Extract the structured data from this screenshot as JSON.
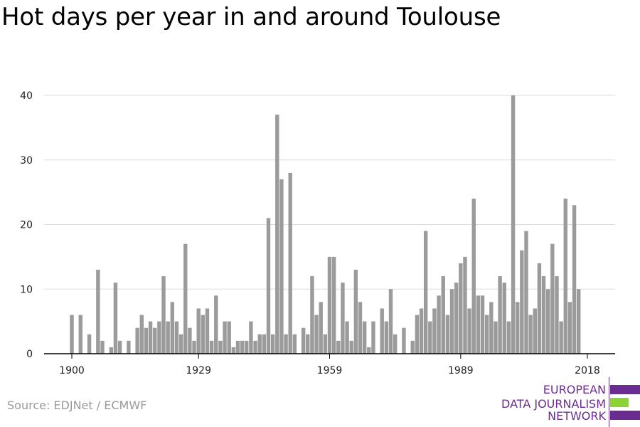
{
  "title": "Hot days per year in and around Toulouse",
  "source": "Source: EDJNet / ECMWF",
  "logo": {
    "line1": "EUROPEAN",
    "line2": "DATA JOURNALISM",
    "line3": "NETWORK",
    "colors": {
      "text": "#6b2c91",
      "bar_purple": "#6b2c91",
      "bar_green": "#8cd335"
    }
  },
  "colors": {
    "bar": "#9b9b9b",
    "grid": "#dddddd",
    "axis": "#000000"
  },
  "chart_data": {
    "type": "bar",
    "title": "Hot days per year in and around Toulouse",
    "xlabel": "",
    "ylabel": "",
    "ylim": [
      0,
      40
    ],
    "yticks": [
      0,
      10,
      20,
      30,
      40
    ],
    "xticks": [
      1900,
      1929,
      1959,
      1989,
      2018
    ],
    "grid": true,
    "x": [
      1900,
      1901,
      1902,
      1903,
      1904,
      1905,
      1906,
      1907,
      1908,
      1909,
      1910,
      1911,
      1912,
      1913,
      1914,
      1915,
      1916,
      1917,
      1918,
      1919,
      1920,
      1921,
      1922,
      1923,
      1924,
      1925,
      1926,
      1927,
      1928,
      1929,
      1930,
      1931,
      1932,
      1933,
      1934,
      1935,
      1936,
      1937,
      1938,
      1939,
      1940,
      1941,
      1942,
      1943,
      1944,
      1945,
      1946,
      1947,
      1948,
      1949,
      1950,
      1951,
      1952,
      1953,
      1954,
      1955,
      1956,
      1957,
      1958,
      1959,
      1960,
      1961,
      1962,
      1963,
      1964,
      1965,
      1966,
      1967,
      1968,
      1969,
      1970,
      1971,
      1972,
      1973,
      1974,
      1975,
      1976,
      1977,
      1978,
      1979,
      1980,
      1981,
      1982,
      1983,
      1984,
      1985,
      1986,
      1987,
      1988,
      1989,
      1990,
      1991,
      1992,
      1993,
      1994,
      1995,
      1996,
      1997,
      1998,
      1999,
      2000,
      2001,
      2002,
      2003,
      2004,
      2005,
      2006,
      2007,
      2008,
      2009,
      2010,
      2011,
      2012,
      2013,
      2014,
      2015,
      2016,
      2017,
      2018
    ],
    "values": [
      6,
      0,
      6,
      0,
      3,
      0,
      13,
      2,
      0,
      1,
      11,
      2,
      0,
      2,
      0,
      4,
      6,
      4,
      5,
      4,
      5,
      12,
      5,
      8,
      5,
      3,
      17,
      4,
      2,
      7,
      6,
      7,
      2,
      9,
      2,
      5,
      5,
      1,
      2,
      2,
      2,
      5,
      2,
      3,
      3,
      21,
      3,
      37,
      27,
      3,
      28,
      3,
      0,
      4,
      3,
      12,
      6,
      8,
      3,
      15,
      15,
      2,
      11,
      5,
      2,
      13,
      8,
      5,
      1,
      5,
      0,
      7,
      5,
      10,
      3,
      0,
      4,
      0,
      2,
      6,
      7,
      19,
      5,
      7,
      9,
      12,
      6,
      10,
      11,
      14,
      15,
      7,
      24,
      9,
      9,
      6,
      8,
      5,
      12,
      11,
      5,
      40,
      8,
      16,
      19,
      6,
      7,
      14,
      12,
      10,
      17,
      12,
      5,
      24,
      8,
      23,
      10,
      0,
      0
    ]
  }
}
